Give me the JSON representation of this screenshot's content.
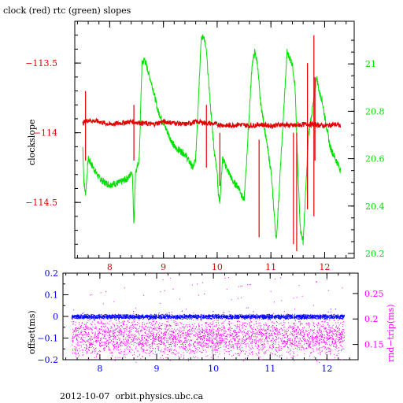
{
  "header": {
    "title": "clock (red) rtc (green) slopes"
  },
  "footer": {
    "text": "2012-10-07  orbit.physics.ubc.ca"
  },
  "colors": {
    "red": "#e00000",
    "green": "#00e000",
    "blue": "#0000ff",
    "magenta": "#ff00ff",
    "axis": "#000000"
  },
  "chart_data": [
    {
      "type": "line",
      "title": "clock (red) rtc (green) slopes",
      "ylabel": "clockslope",
      "xlim": [
        7.35,
        12.55
      ],
      "ylim": [
        -114.9,
        -113.2
      ],
      "y2lim": [
        20.18,
        21.18
      ],
      "x_ticks": [
        8,
        9,
        10,
        11,
        12
      ],
      "y_ticks": [
        -113.5,
        -114,
        -114.5
      ],
      "y_tick_labels": [
        "−113.5",
        "−114",
        "−114.5"
      ],
      "y2_ticks": [
        21,
        20.8,
        20.6,
        20.4,
        20.2
      ],
      "y2_tick_labels": [
        "21",
        "20.8",
        "20.6",
        "20.4",
        "20.2"
      ],
      "grid": false,
      "series": [
        {
          "color": "#e00000",
          "axis": "left",
          "x": [
            7.5,
            7.6,
            7.8,
            8.0,
            8.2,
            8.4,
            8.6,
            8.8,
            9.0,
            9.2,
            9.4,
            9.6,
            9.8,
            10.0,
            10.2,
            10.4,
            10.6,
            10.8,
            11.0,
            11.2,
            11.4,
            11.6,
            11.8,
            12.0,
            12.2,
            12.3
          ],
          "y": [
            -113.93,
            -113.91,
            -113.92,
            -113.94,
            -113.93,
            -113.92,
            -113.93,
            -113.94,
            -113.92,
            -113.93,
            -113.94,
            -113.92,
            -113.93,
            -113.94,
            -113.95,
            -113.94,
            -113.95,
            -113.94,
            -113.95,
            -113.94,
            -113.95,
            -113.94,
            -113.94,
            -113.95,
            -113.94,
            -113.95
          ],
          "spikes": [
            [
              7.55,
              -113.7,
              -114.2
            ],
            [
              8.45,
              -113.8,
              -114.2
            ],
            [
              9.8,
              -113.8,
              -114.25
            ],
            [
              10.05,
              -114.0,
              -114.38
            ],
            [
              10.78,
              -114.05,
              -114.75
            ],
            [
              11.42,
              -114.0,
              -114.8
            ],
            [
              11.48,
              -114.0,
              -114.85
            ],
            [
              11.68,
              -113.5,
              -114.55
            ],
            [
              11.8,
              -113.3,
              -114.6
            ],
            [
              11.82,
              -113.6,
              -114.2
            ]
          ]
        },
        {
          "color": "#00e000",
          "axis": "right",
          "x": [
            7.5,
            7.52,
            7.55,
            7.6,
            7.7,
            7.8,
            7.9,
            8.0,
            8.2,
            8.35,
            8.42,
            8.45,
            8.48,
            8.5,
            8.55,
            8.6,
            8.65,
            8.7,
            8.8,
            8.9,
            9.0,
            9.1,
            9.2,
            9.4,
            9.45,
            9.5,
            9.55,
            9.6,
            9.65,
            9.7,
            9.75,
            9.8,
            9.85,
            9.9,
            9.95,
            10.0,
            10.02,
            10.05,
            10.1,
            10.2,
            10.3,
            10.4,
            10.5,
            10.55,
            10.6,
            10.65,
            10.7,
            10.75,
            10.8,
            10.9,
            11.0,
            11.05,
            11.1,
            11.15,
            11.2,
            11.3,
            11.4,
            11.45,
            11.5,
            11.55,
            11.6,
            11.7,
            11.8,
            11.85,
            11.9,
            11.95,
            12.0,
            12.1,
            12.2,
            12.3
          ],
          "y": [
            20.65,
            20.5,
            20.45,
            20.6,
            20.56,
            20.52,
            20.5,
            20.49,
            20.5,
            20.52,
            20.55,
            20.32,
            20.55,
            20.55,
            20.6,
            21.0,
            21.02,
            20.98,
            20.9,
            20.8,
            20.75,
            20.7,
            20.65,
            20.62,
            20.6,
            20.58,
            20.56,
            20.6,
            20.85,
            21.1,
            21.12,
            21.05,
            20.9,
            20.75,
            20.62,
            20.55,
            20.45,
            20.42,
            20.6,
            20.55,
            20.5,
            20.48,
            20.42,
            20.6,
            20.8,
            21.0,
            21.05,
            21.0,
            20.85,
            20.7,
            20.55,
            20.4,
            20.25,
            20.45,
            20.65,
            21.05,
            21.0,
            20.9,
            20.55,
            20.3,
            20.25,
            20.7,
            20.85,
            20.95,
            20.88,
            20.85,
            20.78,
            20.65,
            20.6,
            20.55
          ]
        }
      ]
    },
    {
      "type": "scatter",
      "ylabel": "offset(ms)",
      "y2label": "rnd−trip(ms)",
      "xlim": [
        7.35,
        12.55
      ],
      "ylim": [
        -0.2,
        0.2
      ],
      "y2lim": [
        0.12,
        0.29
      ],
      "x_ticks": [
        8,
        9,
        10,
        11,
        12
      ],
      "y_ticks": [
        0.2,
        0.1,
        0,
        -0.1,
        -0.2
      ],
      "y_tick_labels": [
        "0.2",
        "0.1",
        "0",
        "−0.1",
        "−0.2"
      ],
      "y2_ticks": [
        0.25,
        0.2,
        0.15
      ],
      "y2_tick_labels": [
        "0.25",
        "0.2",
        "0.15"
      ],
      "grid": false,
      "series": [
        {
          "color": "#0000ff",
          "axis": "left",
          "x_range": [
            7.5,
            12.3
          ],
          "center": 0.0,
          "spread": 0.012
        },
        {
          "color": "#ff00ff",
          "axis": "right",
          "x_range": [
            7.5,
            12.3
          ],
          "center": 0.165,
          "spread": 0.03
        }
      ]
    }
  ]
}
